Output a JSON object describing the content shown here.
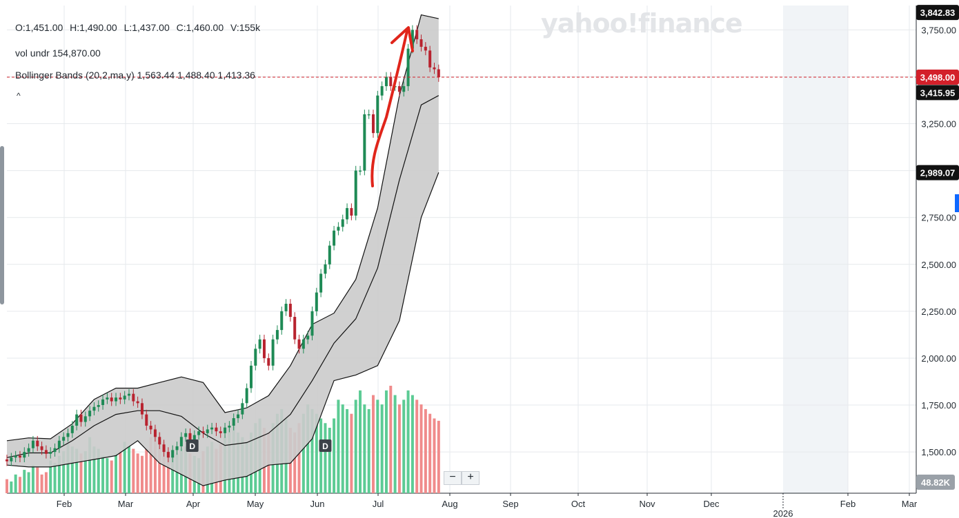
{
  "legend": {
    "ohlc": {
      "open": "O:1,451.00",
      "high": "H:1,490.00",
      "low": "L:1,437.00",
      "close": "C:1,460.00",
      "volume": "V:155k"
    },
    "vol_undr": "vol undr  154,870.00",
    "bollinger": "Bollinger Bands (20,2,ma,y)  1,563.44 1,488.40 1,413.36",
    "collapse_glyph": "^"
  },
  "watermark": "yahoo!finance",
  "zoom": {
    "minus": "−",
    "plus": "+"
  },
  "colors": {
    "up": "#1e8a55",
    "down": "#b8232f",
    "vol_up": "#5ccb94",
    "vol_down": "#f08b8b",
    "band": "#cbcbcb",
    "grid": "#e6e9ec",
    "arrow": "#e0251b",
    "current": "#d3202a",
    "label_dark": "#111111"
  },
  "chart_data": {
    "type": "candlestick",
    "y_axis": {
      "ticks": [
        1500,
        1750,
        2000,
        2250,
        2500,
        2750,
        3000,
        3250,
        3500,
        3750
      ],
      "tick_labels": [
        "1,500.00",
        "1,750.00",
        "2,000.00",
        "2,250.00",
        "2,500.00",
        "2,750.00",
        "",
        "3,250.00",
        "",
        "3,750.00"
      ],
      "range": [
        1280,
        3880
      ]
    },
    "x_axis": {
      "labels": [
        "Feb",
        "Mar",
        "Apr",
        "May",
        "Jun",
        "Jul",
        "Aug",
        "Sep",
        "Oct",
        "Nov",
        "Dec",
        "Feb",
        "Mar"
      ],
      "year_label": "2026",
      "range": [
        "2025-01-14",
        "2026-03-07"
      ]
    },
    "price_labels": [
      {
        "text": "3,842.83",
        "value": 3842.83,
        "style": "dark"
      },
      {
        "text": "3,498.00",
        "value": 3498,
        "style": "current"
      },
      {
        "text": "3,415.95",
        "value": 3415.95,
        "style": "dark"
      },
      {
        "text": "2,989.07",
        "value": 2989.07,
        "style": "dark"
      }
    ],
    "volume_label": "48.82K",
    "current_price": 3498,
    "markers": [
      {
        "label": "D",
        "date": "2025-04-09"
      },
      {
        "label": "D",
        "date": "2025-06-09"
      }
    ],
    "bollinger": {
      "dates": [
        "2025-01-14",
        "2025-01-24",
        "2025-02-03",
        "2025-02-13",
        "2025-02-23",
        "2025-03-05",
        "2025-03-15",
        "2025-03-25",
        "2025-04-04",
        "2025-04-14",
        "2025-04-24",
        "2025-05-04",
        "2025-05-14",
        "2025-05-24",
        "2025-06-03",
        "2025-06-13",
        "2025-06-23",
        "2025-07-03",
        "2025-07-13",
        "2025-07-23",
        "2025-07-31"
      ],
      "upper": [
        1560,
        1575,
        1570,
        1650,
        1780,
        1840,
        1840,
        1870,
        1900,
        1870,
        1710,
        1735,
        1800,
        1960,
        2180,
        2240,
        2420,
        2800,
        3400,
        3830,
        3810
      ],
      "middle": [
        1470,
        1495,
        1495,
        1560,
        1640,
        1700,
        1720,
        1720,
        1690,
        1600,
        1535,
        1550,
        1600,
        1700,
        1880,
        2080,
        2210,
        2480,
        2950,
        3350,
        3400
      ],
      "lower": [
        1430,
        1420,
        1420,
        1440,
        1460,
        1480,
        1560,
        1440,
        1380,
        1320,
        1350,
        1370,
        1430,
        1440,
        1570,
        1880,
        1910,
        1960,
        2200,
        2750,
        2990
      ]
    },
    "candles": {
      "dates": [
        "2025-01-14",
        "2025-01-16",
        "2025-01-18",
        "2025-01-20",
        "2025-01-22",
        "2025-01-24",
        "2025-01-26",
        "2025-01-28",
        "2025-01-30",
        "2025-02-01",
        "2025-02-03",
        "2025-02-05",
        "2025-02-07",
        "2025-02-09",
        "2025-02-11",
        "2025-02-13",
        "2025-02-15",
        "2025-02-17",
        "2025-02-19",
        "2025-02-21",
        "2025-02-23",
        "2025-02-25",
        "2025-02-27",
        "2025-03-01",
        "2025-03-03",
        "2025-03-05",
        "2025-03-07",
        "2025-03-09",
        "2025-03-11",
        "2025-03-13",
        "2025-03-15",
        "2025-03-17",
        "2025-03-19",
        "2025-03-21",
        "2025-03-23",
        "2025-03-25",
        "2025-03-27",
        "2025-03-29",
        "2025-03-31",
        "2025-04-02",
        "2025-04-04",
        "2025-04-06",
        "2025-04-08",
        "2025-04-10",
        "2025-04-12",
        "2025-04-14",
        "2025-04-16",
        "2025-04-18",
        "2025-04-20",
        "2025-04-22",
        "2025-04-24",
        "2025-04-26",
        "2025-04-28",
        "2025-04-30",
        "2025-05-02",
        "2025-05-04",
        "2025-05-06",
        "2025-05-08",
        "2025-05-10",
        "2025-05-12",
        "2025-05-14",
        "2025-05-16",
        "2025-05-18",
        "2025-05-20",
        "2025-05-22",
        "2025-05-24",
        "2025-05-26",
        "2025-05-28",
        "2025-05-30",
        "2025-06-01",
        "2025-06-03",
        "2025-06-05",
        "2025-06-07",
        "2025-06-09",
        "2025-06-11",
        "2025-06-13",
        "2025-06-15",
        "2025-06-17",
        "2025-06-19",
        "2025-06-21",
        "2025-06-23",
        "2025-06-25",
        "2025-06-27",
        "2025-06-29",
        "2025-07-01",
        "2025-07-03",
        "2025-07-05",
        "2025-07-07",
        "2025-07-09",
        "2025-07-11",
        "2025-07-13",
        "2025-07-15",
        "2025-07-17",
        "2025-07-19",
        "2025-07-21",
        "2025-07-23",
        "2025-07-25",
        "2025-07-27",
        "2025-07-29",
        "2025-07-31"
      ],
      "open": [
        1460,
        1450,
        1470,
        1480,
        1470,
        1500,
        1520,
        1560,
        1530,
        1510,
        1490,
        1500,
        1520,
        1560,
        1580,
        1600,
        1640,
        1700,
        1660,
        1690,
        1720,
        1740,
        1750,
        1780,
        1790,
        1770,
        1790,
        1780,
        1800,
        1810,
        1770,
        1760,
        1700,
        1640,
        1620,
        1580,
        1540,
        1500,
        1470,
        1510,
        1530,
        1580,
        1600,
        1560,
        1590,
        1610,
        1600,
        1620,
        1630,
        1610,
        1600,
        1630,
        1640,
        1680,
        1700,
        1760,
        1840,
        1960,
        2050,
        2100,
        2000,
        1960,
        2100,
        2150,
        2250,
        2290,
        2220,
        2100,
        2050,
        2100,
        2120,
        2250,
        2350,
        2450,
        2500,
        2600,
        2680,
        2700,
        2740,
        2800,
        2760,
        3000,
        3000,
        3300,
        3300,
        3200,
        3400,
        3450,
        3500,
        3450,
        3450,
        3420,
        3450,
        3650,
        3750,
        3700,
        3660,
        3640,
        3550,
        3540
      ],
      "close": [
        1450,
        1470,
        1480,
        1470,
        1500,
        1520,
        1560,
        1530,
        1510,
        1490,
        1500,
        1520,
        1560,
        1580,
        1600,
        1640,
        1700,
        1660,
        1690,
        1720,
        1740,
        1750,
        1780,
        1790,
        1770,
        1790,
        1780,
        1800,
        1810,
        1770,
        1760,
        1700,
        1640,
        1620,
        1580,
        1540,
        1500,
        1470,
        1510,
        1530,
        1580,
        1600,
        1560,
        1590,
        1610,
        1600,
        1620,
        1630,
        1610,
        1600,
        1630,
        1640,
        1680,
        1700,
        1760,
        1840,
        1960,
        2050,
        2100,
        2000,
        1960,
        2100,
        2150,
        2250,
        2290,
        2220,
        2100,
        2050,
        2100,
        2120,
        2250,
        2350,
        2450,
        2500,
        2600,
        2680,
        2700,
        2740,
        2800,
        2760,
        3000,
        3000,
        3300,
        3300,
        3200,
        3400,
        3450,
        3500,
        3450,
        3450,
        3420,
        3450,
        3650,
        3750,
        3700,
        3660,
        3640,
        3550,
        3540,
        3498
      ]
    },
    "volume": {
      "values": [
        30,
        25,
        40,
        35,
        50,
        45,
        60,
        55,
        40,
        45,
        70,
        65,
        80,
        90,
        110,
        100,
        95,
        85,
        90,
        120,
        100,
        95,
        80,
        75,
        70,
        85,
        90,
        110,
        100,
        95,
        85,
        80,
        95,
        120,
        140,
        130,
        110,
        90,
        80,
        85,
        95,
        100,
        85,
        80,
        75,
        90,
        100,
        110,
        95,
        105,
        120,
        140,
        150,
        130,
        120,
        110,
        130,
        150,
        160,
        140,
        130,
        150,
        170,
        180,
        160,
        140,
        130,
        150,
        170,
        190,
        180,
        170,
        160,
        150,
        140,
        160,
        200,
        190,
        180,
        170,
        200,
        220,
        190,
        180,
        210,
        200,
        190,
        220,
        230,
        210,
        190,
        200,
        220,
        210,
        200,
        190,
        180,
        170,
        160,
        155
      ],
      "up": [
        false,
        true,
        true,
        false,
        true,
        true,
        true,
        false,
        false,
        false,
        true,
        true,
        true,
        true,
        true,
        true,
        true,
        false,
        true,
        true,
        true,
        true,
        true,
        true,
        false,
        true,
        false,
        true,
        true,
        false,
        false,
        false,
        false,
        false,
        false,
        false,
        false,
        false,
        true,
        true,
        true,
        true,
        false,
        true,
        true,
        false,
        true,
        true,
        false,
        false,
        true,
        true,
        true,
        true,
        true,
        true,
        true,
        true,
        true,
        false,
        false,
        true,
        true,
        true,
        true,
        false,
        false,
        false,
        true,
        true,
        true,
        true,
        true,
        true,
        true,
        true,
        true,
        true,
        true,
        false,
        true,
        true,
        true,
        true,
        false,
        true,
        true,
        true,
        false,
        true,
        false,
        true,
        true,
        true,
        false,
        false,
        false,
        false,
        false,
        false
      ]
    }
  }
}
